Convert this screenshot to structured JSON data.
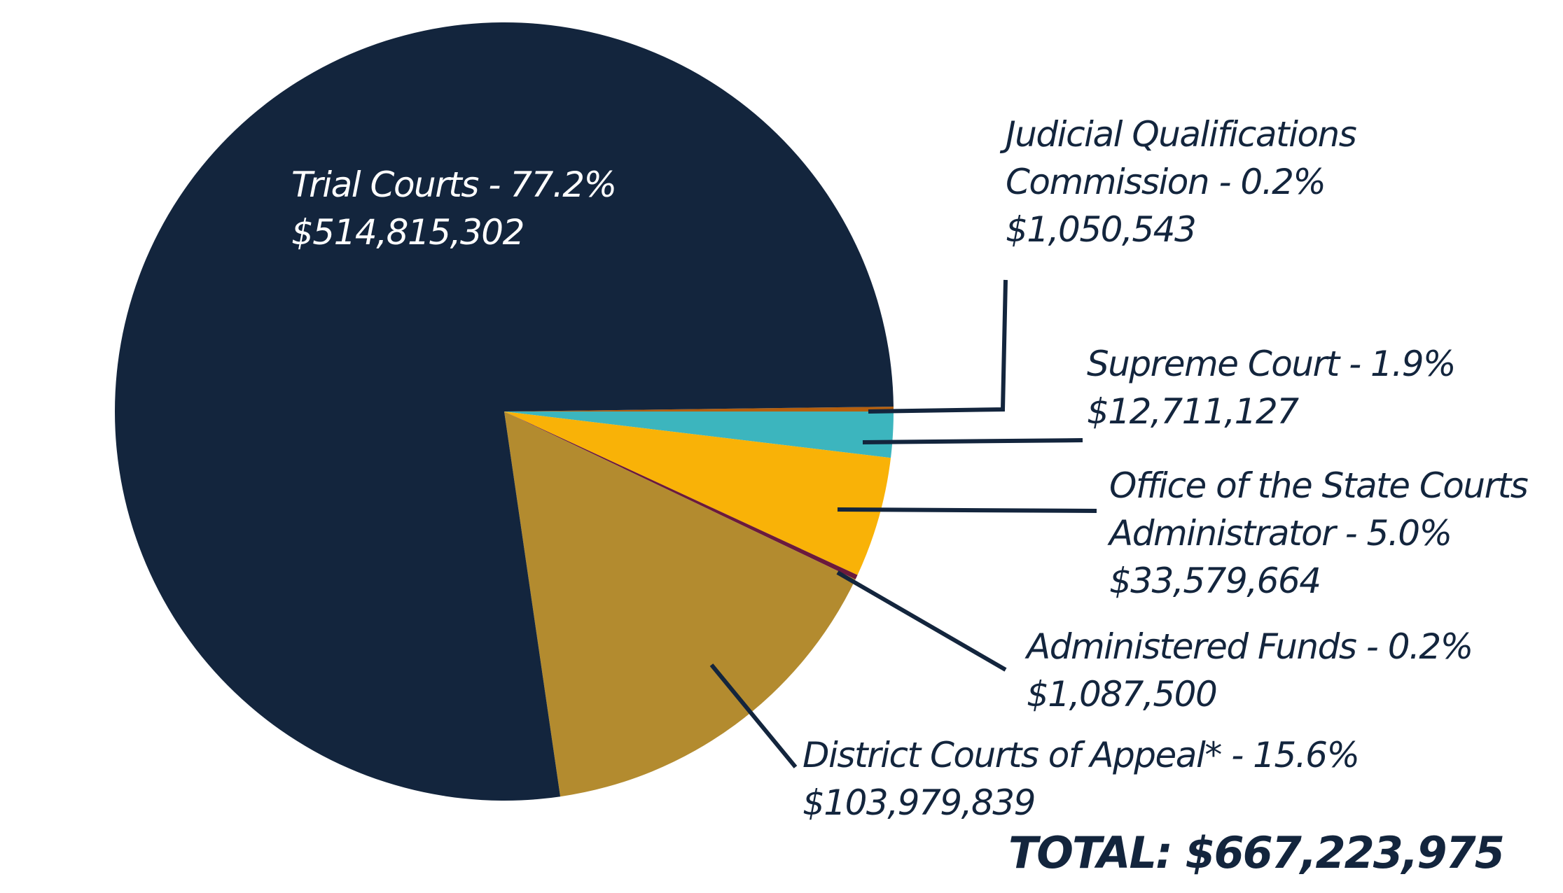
{
  "chart_data": {
    "type": "pie",
    "title": "",
    "start_angle_deg": 0,
    "direction": "clockwise",
    "slices": [
      {
        "id": "jqc",
        "label": "Judicial Qualifications Commission",
        "percent": 0.2,
        "value": 1050543,
        "value_label": "$1,050,543",
        "color": "#b5600f"
      },
      {
        "id": "supreme",
        "label": "Supreme Court",
        "percent": 1.9,
        "value": 12711127,
        "value_label": "$12,711,127",
        "color": "#3cb5be"
      },
      {
        "id": "osca",
        "label": "Office of the State Courts Administrator",
        "percent": 5.0,
        "value": 33579664,
        "value_label": "$33,579,664",
        "color": "#f9b207"
      },
      {
        "id": "admin",
        "label": "Administered Funds",
        "percent": 0.2,
        "value": 1087500,
        "value_label": "$1,087,500",
        "color": "#6b1a3c"
      },
      {
        "id": "dca",
        "label": "District Courts of Appeal*",
        "percent": 15.6,
        "value": 103979839,
        "value_label": "$103,979,839",
        "color": "#b38b2f"
      },
      {
        "id": "trial",
        "label": "Trial Courts",
        "percent": 77.2,
        "value": 514815302,
        "value_label": "$514,815,302",
        "color": "#13253d"
      }
    ],
    "total": 667223975,
    "total_label": "TOTAL: $667,223,975"
  },
  "labels": {
    "trial": {
      "line1": "Trial Courts - 77.2%",
      "line2": "$514,815,302"
    },
    "jqc": {
      "line1": "Judicial Qualifications",
      "line2": "Commission - 0.2%",
      "line3": "$1,050,543"
    },
    "supreme": {
      "line1": "Supreme Court - 1.9%",
      "line2": "$12,711,127"
    },
    "osca": {
      "line1": "Office of the State Courts",
      "line2": "Administrator - 5.0%",
      "line3": "$33,579,664"
    },
    "admin": {
      "line1": "Administered Funds - 0.2%",
      "line2": "$1,087,500"
    },
    "dca": {
      "line1": "District Courts of Appeal* - 15.6%",
      "line2": "$103,979,839"
    }
  },
  "total": {
    "text": "TOTAL: $667,223,975"
  },
  "colors": {
    "text": "#13253d",
    "leader": "#13253d"
  }
}
